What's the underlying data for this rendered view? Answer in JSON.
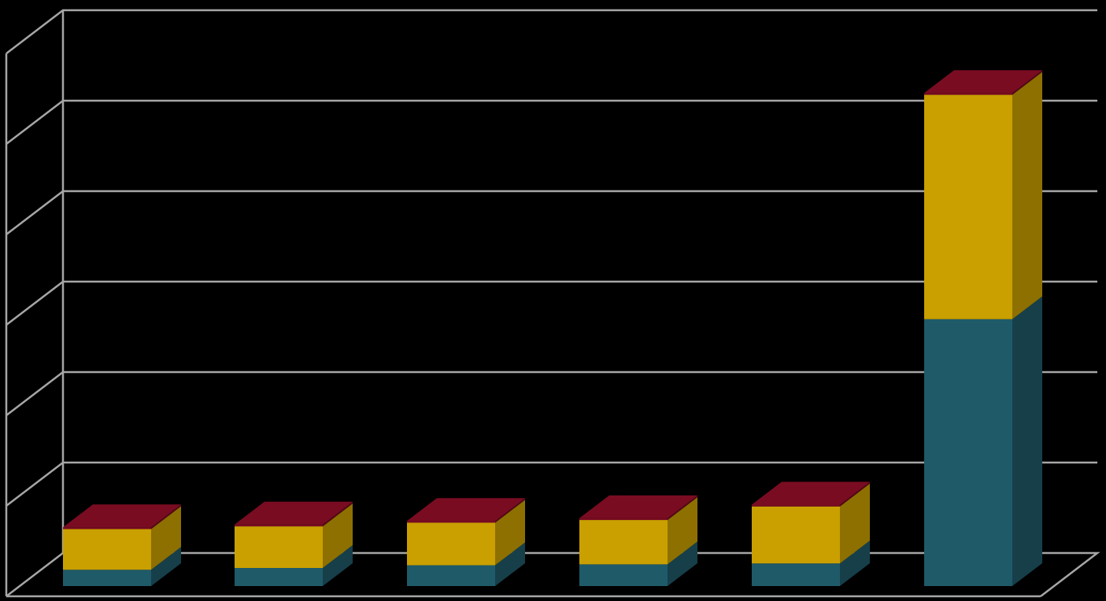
{
  "chart_data": {
    "type": "bar",
    "stacked": true,
    "three_d": true,
    "title": "",
    "xlabel": "",
    "ylabel": "",
    "ylim": [
      0,
      6
    ],
    "grid": true,
    "legend": "none",
    "categories": [
      "",
      "",
      "",
      "",
      "",
      ""
    ],
    "series": [
      {
        "values": [
          0.18,
          0.2,
          0.23,
          0.24,
          0.25,
          2.95
        ],
        "color": "#1f5a69"
      },
      {
        "values": [
          0.45,
          0.46,
          0.47,
          0.49,
          0.63,
          2.48
        ],
        "color": "#c9a000"
      },
      {
        "values": [
          0.02,
          0.02,
          0.02,
          0.02,
          0.02,
          0.02
        ],
        "color": "#7a0c22"
      }
    ]
  }
}
